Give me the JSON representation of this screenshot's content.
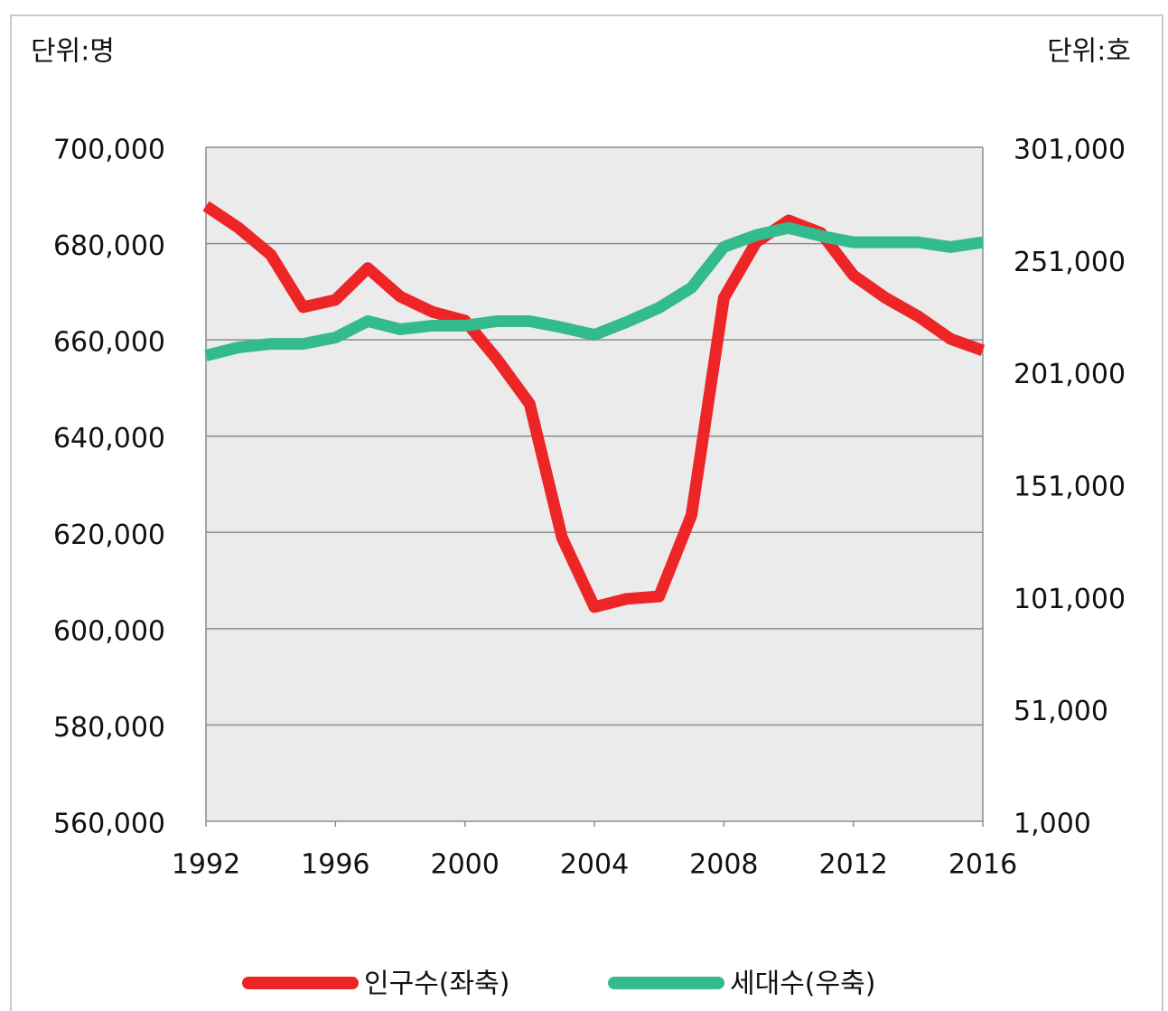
{
  "chart_data": {
    "type": "line",
    "left_unit": "단위:명",
    "right_unit": "단위:호",
    "x": [
      1992,
      1993,
      1994,
      1995,
      1996,
      1997,
      1998,
      1999,
      2000,
      2001,
      2002,
      2003,
      2004,
      2005,
      2006,
      2007,
      2008,
      2009,
      2010,
      2011,
      2012,
      2013,
      2014,
      2015,
      2016
    ],
    "xlim": [
      1992,
      2016
    ],
    "xticks": [
      1992,
      1996,
      2000,
      2004,
      2008,
      2012,
      2016
    ],
    "ylim": [
      560000,
      700000
    ],
    "yticks": [
      {
        "value": 560000,
        "label": "560,000"
      },
      {
        "value": 580000,
        "label": "580,000"
      },
      {
        "value": 600000,
        "label": "600,000"
      },
      {
        "value": 620000,
        "label": "620,000"
      },
      {
        "value": 640000,
        "label": "640,000"
      },
      {
        "value": 660000,
        "label": "660,000"
      },
      {
        "value": 680000,
        "label": "680,000"
      },
      {
        "value": 700000,
        "label": "700,000"
      }
    ],
    "y2lim": [
      1000,
      301000
    ],
    "y2ticks": [
      {
        "value": 1000,
        "label": "1,000"
      },
      {
        "value": 51000,
        "label": "51,000"
      },
      {
        "value": 101000,
        "label": "101,000"
      },
      {
        "value": 151000,
        "label": "151,000"
      },
      {
        "value": 201000,
        "label": "201,000"
      },
      {
        "value": 251000,
        "label": "251,000"
      },
      {
        "value": 301000,
        "label": "301,000"
      }
    ],
    "grid": true,
    "series": [
      {
        "name": "인구수(좌축)",
        "color": "#ee2527",
        "values": [
          687800,
          683300,
          677700,
          666800,
          668300,
          674900,
          669000,
          665800,
          664000,
          655900,
          646700,
          618900,
          604500,
          606200,
          606700,
          623600,
          668700,
          680300,
          684800,
          682200,
          673400,
          668700,
          664900,
          660200,
          657800
        ]
      },
      {
        "name": "세대수(우축)",
        "color": "#33bb8e",
        "axis": "y2",
        "values": [
          208300,
          211900,
          213500,
          213500,
          216300,
          223600,
          220000,
          221600,
          221600,
          223600,
          223600,
          220800,
          217500,
          223200,
          229600,
          238500,
          256600,
          261900,
          265100,
          261500,
          258700,
          258700,
          258700,
          256600,
          258700
        ]
      }
    ]
  }
}
